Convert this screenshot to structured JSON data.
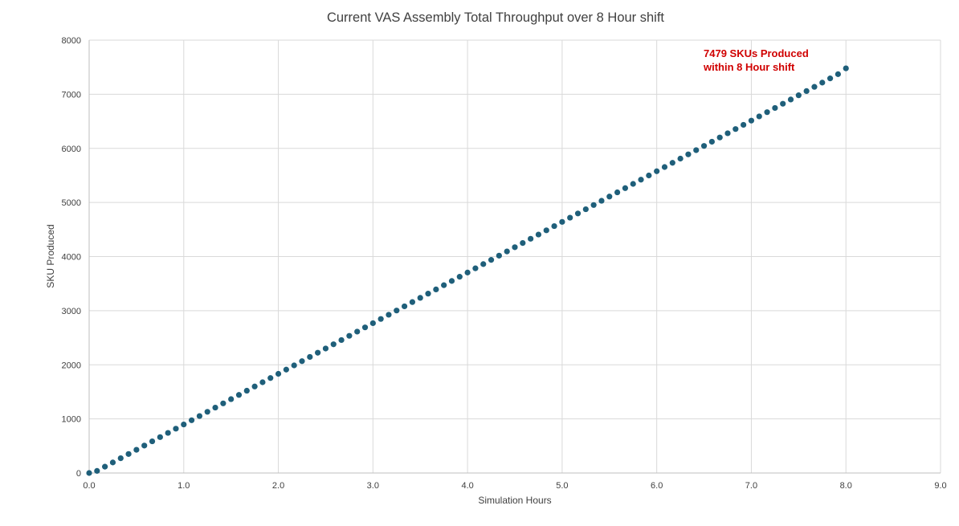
{
  "chart_data": {
    "type": "scatter",
    "title": "Current VAS Assembly Total Throughput over 8 Hour shift",
    "xlabel": "Simulation Hours",
    "ylabel": "SKU Produced",
    "xlim": [
      0,
      9
    ],
    "ylim": [
      0,
      8000
    ],
    "x_ticks": [
      "0.0",
      "1.0",
      "2.0",
      "3.0",
      "4.0",
      "5.0",
      "6.0",
      "7.0",
      "8.0",
      "9.0"
    ],
    "y_ticks": [
      "0",
      "1000",
      "2000",
      "3000",
      "4000",
      "5000",
      "6000",
      "7000",
      "8000"
    ],
    "grid": true,
    "legend": "none",
    "series": [
      {
        "color": "#1f5f7a",
        "x": [
          0.0,
          0.0833,
          0.1667,
          0.25,
          0.3333,
          0.4167,
          0.5,
          0.5833,
          0.6667,
          0.75,
          0.8333,
          0.9167,
          1.0,
          1.0833,
          1.1667,
          1.25,
          1.3333,
          1.4167,
          1.5,
          1.5833,
          1.6667,
          1.75,
          1.8333,
          1.9167,
          2.0,
          2.0833,
          2.1667,
          2.25,
          2.3333,
          2.4167,
          2.5,
          2.5833,
          2.6667,
          2.75,
          2.8333,
          2.9167,
          3.0,
          3.0833,
          3.1667,
          3.25,
          3.3333,
          3.4167,
          3.5,
          3.5833,
          3.6667,
          3.75,
          3.8333,
          3.9167,
          4.0,
          4.0833,
          4.1667,
          4.25,
          4.3333,
          4.4167,
          4.5,
          4.5833,
          4.6667,
          4.75,
          4.8333,
          4.9167,
          5.0,
          5.0833,
          5.1667,
          5.25,
          5.3333,
          5.4167,
          5.5,
          5.5833,
          5.6667,
          5.75,
          5.8333,
          5.9167,
          6.0,
          6.0833,
          6.1667,
          6.25,
          6.3333,
          6.4167,
          6.5,
          6.5833,
          6.6667,
          6.75,
          6.8333,
          6.9167,
          7.0,
          7.0833,
          7.1667,
          7.25,
          7.3333,
          7.4167,
          7.5,
          7.5833,
          7.6667,
          7.75,
          7.8333,
          7.9167,
          8.0
        ],
        "y": [
          0,
          39,
          117,
          195,
          273,
          351,
          429,
          507,
          585,
          663,
          741,
          819,
          897,
          975,
          1053,
          1131,
          1209,
          1287,
          1365,
          1443,
          1521,
          1599,
          1677,
          1755,
          1833,
          1911,
          1989,
          2067,
          2145,
          2223,
          2301,
          2379,
          2457,
          2535,
          2613,
          2691,
          2769,
          2847,
          2925,
          3003,
          3081,
          3159,
          3237,
          3315,
          3393,
          3471,
          3549,
          3627,
          3705,
          3783,
          3861,
          3939,
          4017,
          4095,
          4173,
          4251,
          4329,
          4407,
          4485,
          4563,
          4641,
          4719,
          4797,
          4875,
          4953,
          5031,
          5109,
          5187,
          5265,
          5343,
          5421,
          5499,
          5577,
          5655,
          5733,
          5811,
          5889,
          5967,
          6045,
          6123,
          6201,
          6279,
          6357,
          6435,
          6513,
          6591,
          6669,
          6747,
          6825,
          6903,
          6981,
          7059,
          7137,
          7215,
          7293,
          7371,
          7479
        ]
      }
    ],
    "annotations": [
      {
        "lines": [
          "7479 SKUs Produced",
          "within 8 Hour shift"
        ],
        "color": "#d00000",
        "position": "top-right"
      }
    ]
  }
}
